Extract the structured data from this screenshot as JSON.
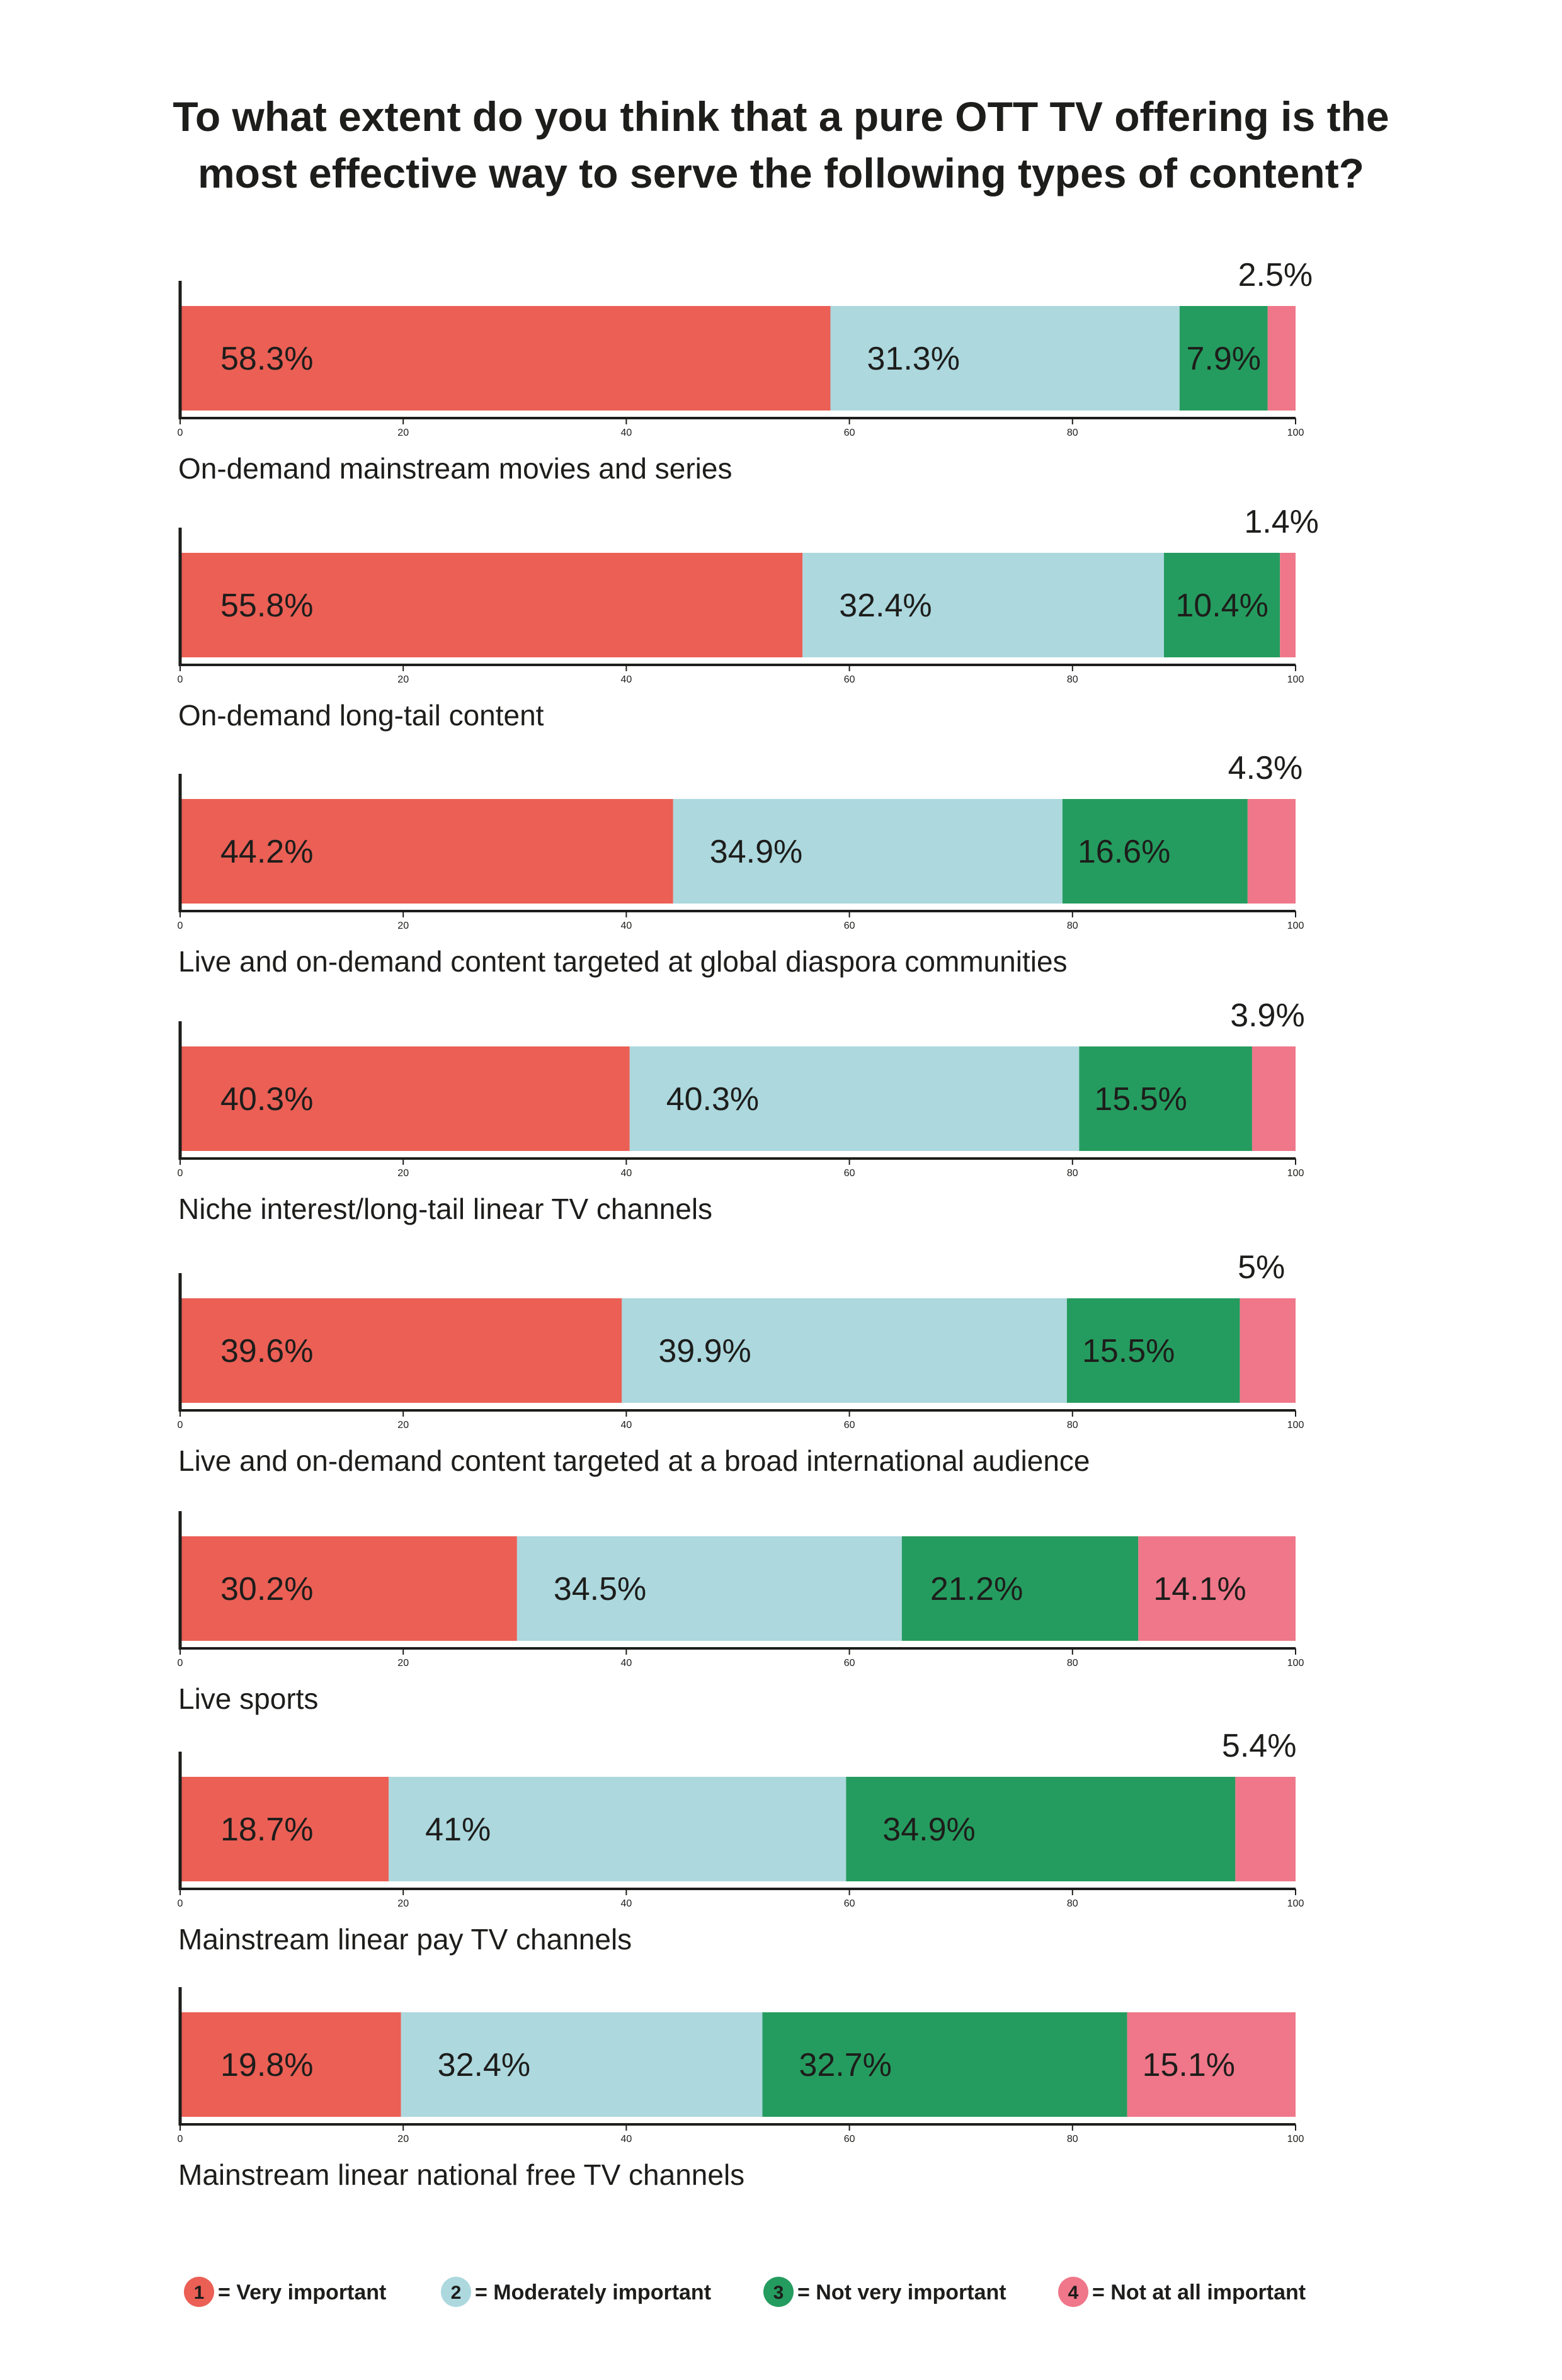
{
  "chart_data": {
    "type": "bar",
    "orientation": "horizontal-stacked",
    "title_lines": [
      "To what extent do you think that a pure OTT TV offering is the",
      "most effective way to serve the following types of content?"
    ],
    "xlim": [
      0,
      100
    ],
    "xticks": [
      "0",
      "20",
      "40",
      "60",
      "80",
      "100"
    ],
    "legend_position": "bottom",
    "series": [
      {
        "name": "Very important",
        "number": "1",
        "color": "#eb5f55"
      },
      {
        "name": "Moderately important",
        "number": "2",
        "color": "#acd8de"
      },
      {
        "name": "Not very important",
        "number": "3",
        "color": "#259c5f"
      },
      {
        "name": "Not at all important",
        "number": "4",
        "color": "#ef7789"
      }
    ],
    "categories": [
      {
        "label": "On-demand mainstream movies and series",
        "values": [
          58.3,
          31.3,
          7.9,
          2.5
        ],
        "labels": [
          "58.3%",
          "31.3%",
          "7.9%",
          "2.5%"
        ]
      },
      {
        "label": "On-demand long-tail content",
        "values": [
          55.8,
          32.4,
          10.4,
          1.4
        ],
        "labels": [
          "55.8%",
          "32.4%",
          "10.4%",
          "1.4%"
        ]
      },
      {
        "label": "Live and on-demand content targeted at global diaspora communities",
        "values": [
          44.2,
          34.9,
          16.6,
          4.3
        ],
        "labels": [
          "44.2%",
          "34.9%",
          "16.6%",
          "4.3%"
        ]
      },
      {
        "label": "Niche interest/long-tail linear TV channels",
        "values": [
          40.3,
          40.3,
          15.5,
          3.9
        ],
        "labels": [
          "40.3%",
          "40.3%",
          "15.5%",
          "3.9%"
        ]
      },
      {
        "label": "Live and on-demand content targeted at a broad international audience",
        "values": [
          39.6,
          39.9,
          15.5,
          5
        ],
        "labels": [
          "39.6%",
          "39.9%",
          "15.5%",
          "5%"
        ]
      },
      {
        "label": "Live sports",
        "values": [
          30.2,
          34.5,
          21.2,
          14.1
        ],
        "labels": [
          "30.2%",
          "34.5%",
          "21.2%",
          "14.1%"
        ]
      },
      {
        "label": "Mainstream linear pay TV channels",
        "values": [
          18.7,
          41,
          34.9,
          5.4
        ],
        "labels": [
          "18.7%",
          "41%",
          "34.9%",
          "5.4%"
        ]
      },
      {
        "label": "Mainstream linear national free TV channels",
        "values": [
          19.8,
          32.4,
          32.7,
          15.1
        ],
        "labels": [
          "19.8%",
          "32.4%",
          "32.7%",
          "15.1%"
        ]
      }
    ]
  }
}
